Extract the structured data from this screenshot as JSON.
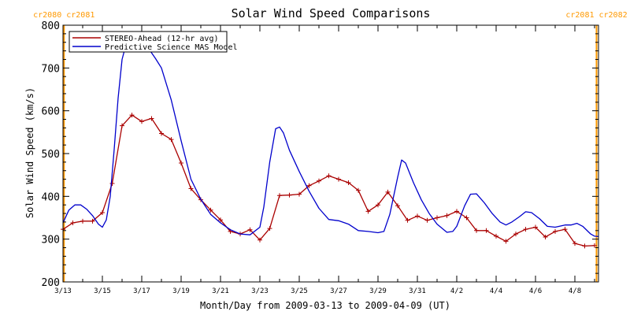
{
  "chart_data": {
    "type": "line",
    "title": "Solar Wind Speed Comparisons",
    "xlabel": "Month/Day from 2009-03-13 to 2009-04-09 (UT)",
    "ylabel": "Solar Wind Speed (km/s)",
    "x_range_days": [
      0,
      27.2
    ],
    "ylim": [
      200,
      800
    ],
    "y_ticks": [
      200,
      300,
      400,
      500,
      600,
      700,
      800
    ],
    "x_ticks": [
      {
        "day": 0,
        "label": "3/13"
      },
      {
        "day": 2,
        "label": "3/15"
      },
      {
        "day": 4,
        "label": "3/17"
      },
      {
        "day": 6,
        "label": "3/19"
      },
      {
        "day": 8,
        "label": "3/21"
      },
      {
        "day": 10,
        "label": "3/23"
      },
      {
        "day": 12,
        "label": "3/25"
      },
      {
        "day": 14,
        "label": "3/27"
      },
      {
        "day": 16,
        "label": "3/29"
      },
      {
        "day": 18,
        "label": "3/31"
      },
      {
        "day": 20,
        "label": "4/2"
      },
      {
        "day": 22,
        "label": "4/4"
      },
      {
        "day": 24,
        "label": "4/6"
      },
      {
        "day": 26,
        "label": "4/8"
      }
    ],
    "carrington_markers": [
      {
        "day": 0.05,
        "left_label": "cr2080",
        "right_label": "cr2081",
        "color": "#ff9900"
      },
      {
        "day": 27.1,
        "left_label": "cr2081",
        "right_label": "cr2082",
        "color": "#ff9900"
      }
    ],
    "legend": {
      "placement": "top-left"
    },
    "series": [
      {
        "name": "STEREO-Ahead (12-hr avg)",
        "color": "#aa0000",
        "markers": "plus",
        "points": [
          [
            0.0,
            323
          ],
          [
            0.5,
            338
          ],
          [
            1.0,
            342
          ],
          [
            1.5,
            342
          ],
          [
            2.0,
            362
          ],
          [
            2.5,
            430
          ],
          [
            3.0,
            565
          ],
          [
            3.5,
            590
          ],
          [
            4.0,
            575
          ],
          [
            4.5,
            582
          ],
          [
            5.0,
            547
          ],
          [
            5.5,
            533
          ],
          [
            6.0,
            478
          ],
          [
            6.5,
            418
          ],
          [
            7.0,
            392
          ],
          [
            7.5,
            368
          ],
          [
            8.0,
            345
          ],
          [
            8.5,
            318
          ],
          [
            9.0,
            312
          ],
          [
            9.5,
            322
          ],
          [
            10.0,
            298
          ],
          [
            10.5,
            325
          ],
          [
            11.0,
            402
          ],
          [
            11.5,
            403
          ],
          [
            12.0,
            405
          ],
          [
            12.5,
            425
          ],
          [
            13.0,
            436
          ],
          [
            13.5,
            448
          ],
          [
            14.0,
            440
          ],
          [
            14.5,
            432
          ],
          [
            15.0,
            414
          ],
          [
            15.5,
            365
          ],
          [
            16.0,
            380
          ],
          [
            16.5,
            410
          ],
          [
            17.0,
            378
          ],
          [
            17.5,
            344
          ],
          [
            18.0,
            354
          ],
          [
            18.5,
            344
          ],
          [
            19.0,
            350
          ],
          [
            19.5,
            355
          ],
          [
            20.0,
            365
          ],
          [
            20.5,
            350
          ],
          [
            21.0,
            320
          ],
          [
            21.5,
            320
          ],
          [
            22.0,
            307
          ],
          [
            22.5,
            295
          ],
          [
            23.0,
            312
          ],
          [
            23.5,
            323
          ],
          [
            24.0,
            328
          ],
          [
            24.5,
            305
          ],
          [
            25.0,
            318
          ],
          [
            25.5,
            323
          ],
          [
            26.0,
            290
          ],
          [
            26.5,
            284
          ],
          [
            27.0,
            285
          ]
        ]
      },
      {
        "name": "Predictive Science MAS Model",
        "color": "#0000cc",
        "markers": "none",
        "points": [
          [
            0.0,
            338
          ],
          [
            0.3,
            368
          ],
          [
            0.6,
            380
          ],
          [
            0.9,
            380
          ],
          [
            1.2,
            370
          ],
          [
            1.5,
            355
          ],
          [
            1.8,
            335
          ],
          [
            2.0,
            328
          ],
          [
            2.2,
            345
          ],
          [
            2.4,
            400
          ],
          [
            2.6,
            510
          ],
          [
            2.8,
            630
          ],
          [
            3.0,
            720
          ],
          [
            3.2,
            755
          ],
          [
            3.5,
            760
          ],
          [
            3.8,
            758
          ],
          [
            4.1,
            755
          ],
          [
            4.4,
            742
          ],
          [
            4.7,
            722
          ],
          [
            5.0,
            700
          ],
          [
            5.5,
            625
          ],
          [
            6.0,
            530
          ],
          [
            6.5,
            440
          ],
          [
            7.0,
            393
          ],
          [
            7.5,
            358
          ],
          [
            8.0,
            338
          ],
          [
            8.5,
            322
          ],
          [
            9.0,
            312
          ],
          [
            9.5,
            310
          ],
          [
            10.0,
            328
          ],
          [
            10.2,
            375
          ],
          [
            10.5,
            480
          ],
          [
            10.8,
            558
          ],
          [
            11.0,
            562
          ],
          [
            11.2,
            548
          ],
          [
            11.5,
            508
          ],
          [
            12.0,
            458
          ],
          [
            12.5,
            412
          ],
          [
            13.0,
            372
          ],
          [
            13.5,
            346
          ],
          [
            14.0,
            343
          ],
          [
            14.5,
            335
          ],
          [
            15.0,
            320
          ],
          [
            15.5,
            318
          ],
          [
            16.0,
            315
          ],
          [
            16.3,
            318
          ],
          [
            16.6,
            358
          ],
          [
            17.0,
            445
          ],
          [
            17.2,
            485
          ],
          [
            17.4,
            478
          ],
          [
            17.8,
            432
          ],
          [
            18.2,
            392
          ],
          [
            18.6,
            360
          ],
          [
            19.0,
            335
          ],
          [
            19.5,
            316
          ],
          [
            19.8,
            318
          ],
          [
            20.0,
            330
          ],
          [
            20.4,
            378
          ],
          [
            20.7,
            405
          ],
          [
            21.0,
            406
          ],
          [
            21.4,
            385
          ],
          [
            21.8,
            360
          ],
          [
            22.2,
            340
          ],
          [
            22.5,
            333
          ],
          [
            22.8,
            340
          ],
          [
            23.2,
            353
          ],
          [
            23.5,
            364
          ],
          [
            23.8,
            362
          ],
          [
            24.2,
            348
          ],
          [
            24.6,
            330
          ],
          [
            25.0,
            328
          ],
          [
            25.5,
            333
          ],
          [
            25.8,
            333
          ],
          [
            26.1,
            337
          ],
          [
            26.4,
            330
          ],
          [
            26.8,
            312
          ],
          [
            27.0,
            307
          ],
          [
            27.2,
            306
          ]
        ]
      }
    ]
  }
}
